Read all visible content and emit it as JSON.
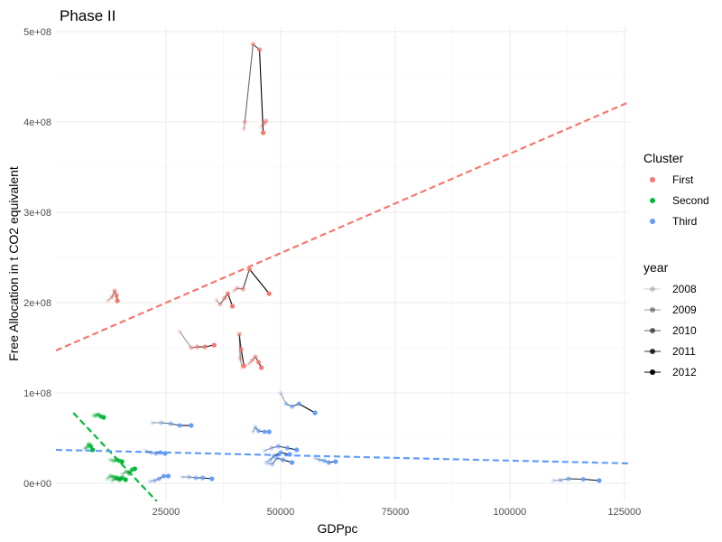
{
  "chart_data": {
    "type": "scatter",
    "title": "Phase II",
    "xlabel": "GDPpc",
    "ylabel": "Free Allocation in t CO2 equivalent",
    "xlim": [
      1000,
      126000
    ],
    "ylim": [
      -20000000,
      505000000
    ],
    "x_ticks": [
      25000,
      50000,
      75000,
      100000,
      125000
    ],
    "x_tick_labels": [
      "25000",
      "50000",
      "75000",
      "100000",
      "125000"
    ],
    "y_ticks": [
      0,
      100000000,
      200000000,
      300000000,
      400000000,
      500000000
    ],
    "y_tick_labels": [
      "0e+00",
      "1e+08",
      "2e+08",
      "3e+08",
      "4e+08",
      "5e+08"
    ],
    "grid": true,
    "legend_position": "right",
    "cluster_legend": {
      "title": "Cluster",
      "items": [
        {
          "label": "First",
          "color": "#F8766D"
        },
        {
          "label": "Second",
          "color": "#00BA38"
        },
        {
          "label": "Third",
          "color": "#619CFF"
        }
      ]
    },
    "year_legend": {
      "title": "year",
      "items": [
        {
          "label": "2008",
          "alpha": 0.2
        },
        {
          "label": "2009",
          "alpha": 0.4
        },
        {
          "label": "2010",
          "alpha": 0.6
        },
        {
          "label": "2011",
          "alpha": 0.8
        },
        {
          "label": "2012",
          "alpha": 1.0
        }
      ]
    },
    "trend_lines": [
      {
        "cluster": "First",
        "color": "#F8766D",
        "x": [
          1000,
          126000
        ],
        "y": [
          147000000,
          422000000
        ]
      },
      {
        "cluster": "Second",
        "color": "#00BA38",
        "x": [
          4800,
          23000
        ],
        "y": [
          78000000,
          -20000000
        ]
      },
      {
        "cluster": "Third",
        "color": "#619CFF",
        "x": [
          1000,
          126000
        ],
        "y": [
          37000000,
          22000000
        ]
      }
    ],
    "series": [
      {
        "cluster": "First",
        "x": [
          42000,
          42200,
          44000,
          45400,
          46200
        ],
        "y": [
          392000000,
          400000000,
          486000000,
          480000000,
          388000000
        ]
      },
      {
        "cluster": "First",
        "x": [
          45800,
          46400,
          46800
        ],
        "y": [
          395000000,
          398000000,
          401000000
        ]
      },
      {
        "cluster": "First",
        "x": [
          12300,
          13200,
          13800,
          14200,
          14400
        ],
        "y": [
          202000000,
          206000000,
          213000000,
          208000000,
          202000000
        ]
      },
      {
        "cluster": "First",
        "x": [
          39800,
          40500,
          41800,
          43200,
          47500
        ],
        "y": [
          213000000,
          216000000,
          215000000,
          237000000,
          210000000
        ]
      },
      {
        "cluster": "First",
        "x": [
          36000,
          36800,
          37800,
          38500,
          39500
        ],
        "y": [
          203000000,
          198000000,
          205000000,
          210000000,
          196000000
        ]
      },
      {
        "cluster": "First",
        "x": [
          28000,
          30500,
          31800,
          33500,
          35500
        ],
        "y": [
          168000000,
          150000000,
          151000000,
          151000000,
          153000000
        ]
      },
      {
        "cluster": "First",
        "x": [
          41600,
          41200,
          41000,
          41400,
          42000
        ],
        "y": [
          128000000,
          138000000,
          165000000,
          148000000,
          130000000
        ]
      },
      {
        "cluster": "First",
        "x": [
          43000,
          43800,
          44500,
          45200,
          45800
        ],
        "y": [
          132000000,
          136000000,
          140000000,
          134000000,
          128000000
        ]
      },
      {
        "cluster": "Second",
        "x": [
          9200,
          9600,
          10200,
          10800,
          11400
        ],
        "y": [
          75000000,
          75000000,
          76000000,
          74000000,
          73000000
        ]
      },
      {
        "cluster": "Second",
        "x": [
          7200,
          7800,
          8200,
          8600,
          9000
        ],
        "y": [
          38000000,
          40000000,
          43000000,
          41000000,
          37000000
        ]
      },
      {
        "cluster": "Second",
        "x": [
          12800,
          13600,
          14200,
          14800,
          15400
        ],
        "y": [
          26000000,
          25000000,
          26000000,
          25000000,
          24000000
        ]
      },
      {
        "cluster": "Second",
        "x": [
          12200,
          12900,
          13600,
          14300,
          15000
        ],
        "y": [
          5000000,
          8000000,
          7000000,
          6000000,
          5000000
        ]
      },
      {
        "cluster": "Second",
        "x": [
          15500,
          16300,
          17000,
          17600,
          18200
        ],
        "y": [
          10000000,
          13000000,
          11000000,
          15000000,
          16000000
        ]
      },
      {
        "cluster": "Second",
        "x": [
          13200,
          14000,
          14800,
          15500,
          16200
        ],
        "y": [
          3000000,
          5000000,
          4000000,
          6000000,
          4000000
        ]
      },
      {
        "cluster": "Third",
        "x": [
          50000,
          51200,
          52500,
          54000,
          57500
        ],
        "y": [
          100000000,
          88000000,
          85000000,
          88000000,
          78000000
        ]
      },
      {
        "cluster": "Third",
        "x": [
          22000,
          24000,
          26000,
          28000,
          30500
        ],
        "y": [
          67000000,
          67000000,
          66000000,
          64000000,
          64000000
        ]
      },
      {
        "cluster": "Third",
        "x": [
          44000,
          44500,
          45200,
          46500,
          47500
        ],
        "y": [
          57000000,
          62000000,
          58000000,
          57000000,
          57000000
        ]
      },
      {
        "cluster": "Third",
        "x": [
          20500,
          21800,
          22800,
          23800,
          24800
        ],
        "y": [
          36000000,
          34000000,
          33000000,
          34000000,
          33000000
        ]
      },
      {
        "cluster": "Third",
        "x": [
          46500,
          48000,
          49500,
          51500,
          53500
        ],
        "y": [
          36000000,
          39000000,
          41000000,
          39000000,
          37000000
        ]
      },
      {
        "cluster": "Third",
        "x": [
          46800,
          47800,
          48500,
          50000,
          52000
        ],
        "y": [
          23000000,
          26000000,
          30000000,
          34000000,
          32000000
        ]
      },
      {
        "cluster": "Third",
        "x": [
          47200,
          48200,
          49200,
          50500,
          52500
        ],
        "y": [
          22000000,
          21000000,
          28000000,
          26000000,
          23000000
        ]
      },
      {
        "cluster": "Third",
        "x": [
          57500,
          58500,
          59500,
          60500,
          62000
        ],
        "y": [
          28000000,
          26000000,
          25000000,
          23000000,
          24000000
        ]
      },
      {
        "cluster": "Third",
        "x": [
          21500,
          22500,
          23500,
          24500,
          25500
        ],
        "y": [
          2000000,
          3000000,
          5000000,
          8000000,
          8000000
        ]
      },
      {
        "cluster": "Third",
        "x": [
          28500,
          30000,
          31500,
          33000,
          35000
        ],
        "y": [
          7000000,
          7000000,
          6000000,
          6000000,
          5000000
        ]
      },
      {
        "cluster": "Third",
        "x": [
          109500,
          111000,
          112800,
          116000,
          119500
        ],
        "y": [
          3000000,
          3500000,
          5000000,
          4500000,
          3000000
        ]
      }
    ]
  }
}
